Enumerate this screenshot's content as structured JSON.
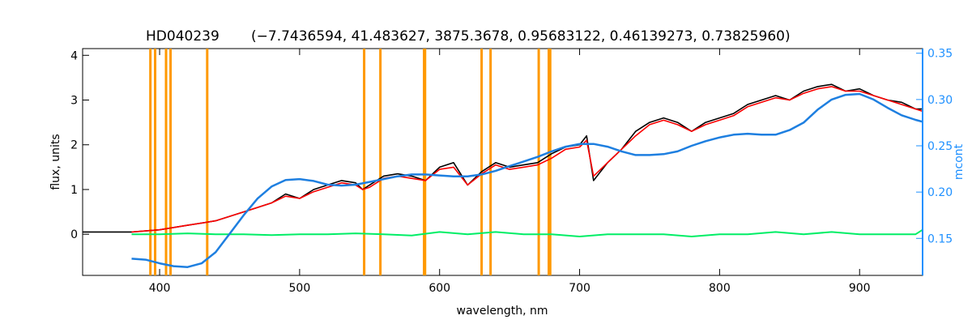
{
  "chart_data": {
    "type": "line",
    "title_star": "HD040239",
    "title_params": "(−7.7436594, 41.483627, 3875.3678, 0.95683122, 0.46139273, 0.73825960)",
    "xlabel": "wavelength, nm",
    "ylabel": "flux, units",
    "y2label": "mcont",
    "xlim": [
      345,
      945
    ],
    "ylim": [
      -0.92,
      4.15
    ],
    "y2lim": [
      0.11,
      0.355
    ],
    "xticks": [
      400,
      500,
      600,
      700,
      800,
      900
    ],
    "yticks": [
      0,
      1,
      2,
      3,
      4
    ],
    "y2ticks": [
      0.15,
      0.2,
      0.25,
      0.3,
      0.35
    ],
    "vlines": [
      393.4,
      396.8,
      404.6,
      407.8,
      434.0,
      546.1,
      557.7,
      588.9,
      589.6,
      630.0,
      636.4,
      670.8,
      678.0,
      679.0
    ],
    "vline_color": "#ff9900",
    "series": [
      {
        "kind": "observed",
        "color": "#000000",
        "x": [
          345,
          380,
          400,
          420,
          440,
          450,
          460,
          470,
          480,
          490,
          500,
          510,
          520,
          530,
          540,
          545,
          550,
          560,
          570,
          580,
          590,
          600,
          610,
          620,
          630,
          640,
          650,
          660,
          670,
          680,
          690,
          700,
          705,
          710,
          720,
          730,
          740,
          750,
          760,
          770,
          780,
          790,
          800,
          810,
          820,
          830,
          840,
          850,
          860,
          870,
          880,
          890,
          900,
          910,
          920,
          930,
          940,
          945
        ],
        "y": [
          0.05,
          0.05,
          0.1,
          0.2,
          0.3,
          0.4,
          0.5,
          0.6,
          0.7,
          0.9,
          0.8,
          1.0,
          1.1,
          1.2,
          1.15,
          1.0,
          1.1,
          1.3,
          1.35,
          1.3,
          1.2,
          1.5,
          1.6,
          1.1,
          1.4,
          1.6,
          1.5,
          1.55,
          1.6,
          1.8,
          1.95,
          2.0,
          2.2,
          1.2,
          1.6,
          1.9,
          2.3,
          2.5,
          2.6,
          2.5,
          2.3,
          2.5,
          2.6,
          2.7,
          2.9,
          3.0,
          3.1,
          3.0,
          3.2,
          3.3,
          3.35,
          3.2,
          3.25,
          3.1,
          3.0,
          2.95,
          2.8,
          2.8
        ]
      },
      {
        "kind": "model",
        "color": "#ff0000",
        "x": [
          380,
          400,
          420,
          440,
          450,
          460,
          470,
          480,
          490,
          500,
          510,
          520,
          530,
          540,
          545,
          550,
          560,
          570,
          580,
          590,
          600,
          610,
          620,
          630,
          640,
          650,
          660,
          670,
          680,
          690,
          700,
          705,
          710,
          720,
          730,
          740,
          750,
          760,
          770,
          780,
          790,
          800,
          810,
          820,
          830,
          840,
          850,
          860,
          870,
          880,
          890,
          900,
          910,
          920,
          930,
          940,
          945
        ],
        "y": [
          0.05,
          0.1,
          0.2,
          0.3,
          0.4,
          0.5,
          0.6,
          0.7,
          0.85,
          0.8,
          0.95,
          1.05,
          1.15,
          1.1,
          1.0,
          1.05,
          1.25,
          1.3,
          1.25,
          1.2,
          1.45,
          1.5,
          1.1,
          1.35,
          1.55,
          1.45,
          1.5,
          1.55,
          1.7,
          1.9,
          1.95,
          2.1,
          1.3,
          1.6,
          1.9,
          2.2,
          2.45,
          2.55,
          2.45,
          2.3,
          2.45,
          2.55,
          2.65,
          2.85,
          2.95,
          3.05,
          3.0,
          3.15,
          3.25,
          3.3,
          3.2,
          3.2,
          3.1,
          3.0,
          2.9,
          2.8,
          2.75
        ]
      },
      {
        "kind": "residual",
        "color": "#00ee66",
        "x": [
          380,
          400,
          420,
          440,
          460,
          480,
          500,
          520,
          540,
          560,
          580,
          600,
          620,
          640,
          660,
          680,
          700,
          720,
          740,
          760,
          780,
          800,
          820,
          840,
          860,
          880,
          900,
          920,
          940,
          945
        ],
        "y": [
          0.0,
          0.0,
          0.02,
          0.0,
          0.0,
          -0.02,
          0.0,
          0.0,
          0.02,
          0.0,
          -0.03,
          0.05,
          0.0,
          0.05,
          0.0,
          0.0,
          -0.05,
          0.0,
          0.0,
          0.0,
          -0.05,
          0.0,
          0.0,
          0.05,
          0.0,
          0.05,
          0.0,
          0.0,
          0.0,
          0.1
        ]
      },
      {
        "kind": "mcont",
        "axis": "y2",
        "color": "#1e7fe0",
        "x": [
          380,
          390,
          400,
          410,
          420,
          430,
          440,
          450,
          460,
          470,
          480,
          490,
          500,
          510,
          520,
          530,
          540,
          550,
          560,
          570,
          580,
          590,
          600,
          610,
          620,
          630,
          640,
          650,
          660,
          670,
          680,
          690,
          700,
          710,
          720,
          730,
          740,
          750,
          760,
          770,
          780,
          790,
          800,
          810,
          820,
          830,
          840,
          850,
          860,
          870,
          880,
          890,
          900,
          910,
          920,
          930,
          940,
          945
        ],
        "y": [
          0.128,
          0.127,
          0.123,
          0.12,
          0.119,
          0.123,
          0.135,
          0.155,
          0.175,
          0.193,
          0.206,
          0.213,
          0.214,
          0.212,
          0.208,
          0.207,
          0.208,
          0.211,
          0.214,
          0.217,
          0.219,
          0.219,
          0.218,
          0.217,
          0.217,
          0.219,
          0.223,
          0.228,
          0.233,
          0.238,
          0.244,
          0.249,
          0.252,
          0.252,
          0.249,
          0.244,
          0.24,
          0.24,
          0.241,
          0.244,
          0.25,
          0.255,
          0.259,
          0.262,
          0.263,
          0.262,
          0.262,
          0.267,
          0.275,
          0.289,
          0.3,
          0.305,
          0.306,
          0.3,
          0.291,
          0.283,
          0.278,
          0.276
        ]
      }
    ]
  }
}
